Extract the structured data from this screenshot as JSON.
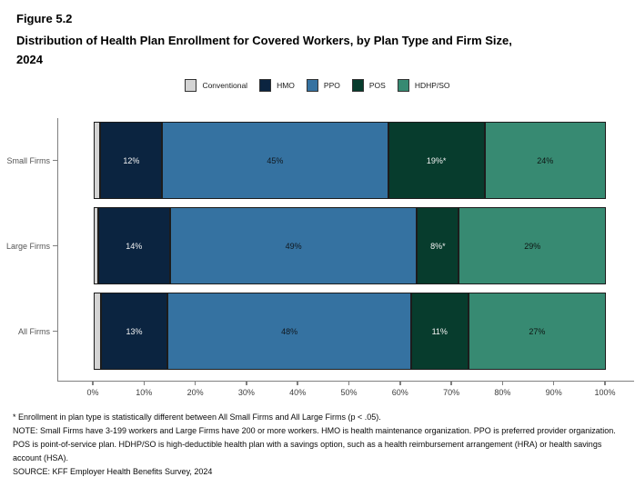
{
  "figure": {
    "number": "Figure 5.2",
    "title": "Distribution of Health Plan Enrollment for Covered Workers, by Plan Type and Firm Size, 2024",
    "title_lines": [
      "Distribution of Health Plan Enrollment for Covered Workers, by Plan Type and Firm Size,",
      "2024"
    ]
  },
  "colors": {
    "conventional": "#d4d4d4",
    "hmo": "#0b2440",
    "ppo": "#3572a1",
    "pos": "#073c2d",
    "hdhp_so": "#378a72"
  },
  "legend": {
    "position": "top-center",
    "items": [
      {
        "label": "Conventional",
        "color_key": "conventional"
      },
      {
        "label": "HMO",
        "color_key": "hmo"
      },
      {
        "label": "PPO",
        "color_key": "ppo"
      },
      {
        "label": "POS",
        "color_key": "pos"
      },
      {
        "label": "HDHP/SO",
        "color_key": "hdhp_so"
      }
    ]
  },
  "chart_data": {
    "type": "bar",
    "orientation": "horizontal",
    "stacked": true,
    "title": "Distribution of Health Plan Enrollment for Covered Workers, by Plan Type and Firm Size, 2024",
    "xlabel": "",
    "ylabel": "",
    "xlim": [
      0,
      100
    ],
    "grid": false,
    "legend_position": "top",
    "categories": [
      "Small Firms",
      "Large Firms",
      "All Firms"
    ],
    "series": [
      {
        "name": "Conventional",
        "color_key": "conventional",
        "label_color": "#111111",
        "values": [
          1,
          0.5,
          1
        ],
        "labels": [
          "",
          "",
          ""
        ]
      },
      {
        "name": "HMO",
        "color_key": "hmo",
        "label_color": "#f2f2f2",
        "values": [
          12,
          14,
          13
        ],
        "labels": [
          "12%",
          "14%",
          "13%"
        ]
      },
      {
        "name": "PPO",
        "color_key": "ppo",
        "label_color": "#10181f",
        "values": [
          45,
          49,
          48
        ],
        "labels": [
          "45%",
          "49%",
          "48%"
        ]
      },
      {
        "name": "POS",
        "color_key": "pos",
        "label_color": "#f2f2f2",
        "values": [
          19,
          8,
          11
        ],
        "labels": [
          "19%*",
          "8%*",
          "11%"
        ]
      },
      {
        "name": "HDHP/SO",
        "color_key": "hdhp_so",
        "label_color": "#0d1512",
        "values": [
          24,
          29,
          27
        ],
        "labels": [
          "24%",
          "29%",
          "27%"
        ]
      }
    ],
    "x_ticks": [
      "0%",
      "10%",
      "20%",
      "30%",
      "40%",
      "50%",
      "60%",
      "70%",
      "80%",
      "90%",
      "100%"
    ]
  },
  "footnotes": {
    "significance": "* Enrollment in plan type is statistically different between All Small Firms and All Large Firms (p < .05).",
    "note": "NOTE: Small Firms have 3-199 workers and Large Firms have 200 or more workers. HMO is health maintenance organization. PPO is preferred provider organization. POS is point-of-service plan. HDHP/SO is high-deductible health plan with a savings option, such as a health reimbursement arrangement (HRA) or health savings account (HSA).",
    "source": "SOURCE: KFF Employer Health Benefits Survey, 2024"
  }
}
